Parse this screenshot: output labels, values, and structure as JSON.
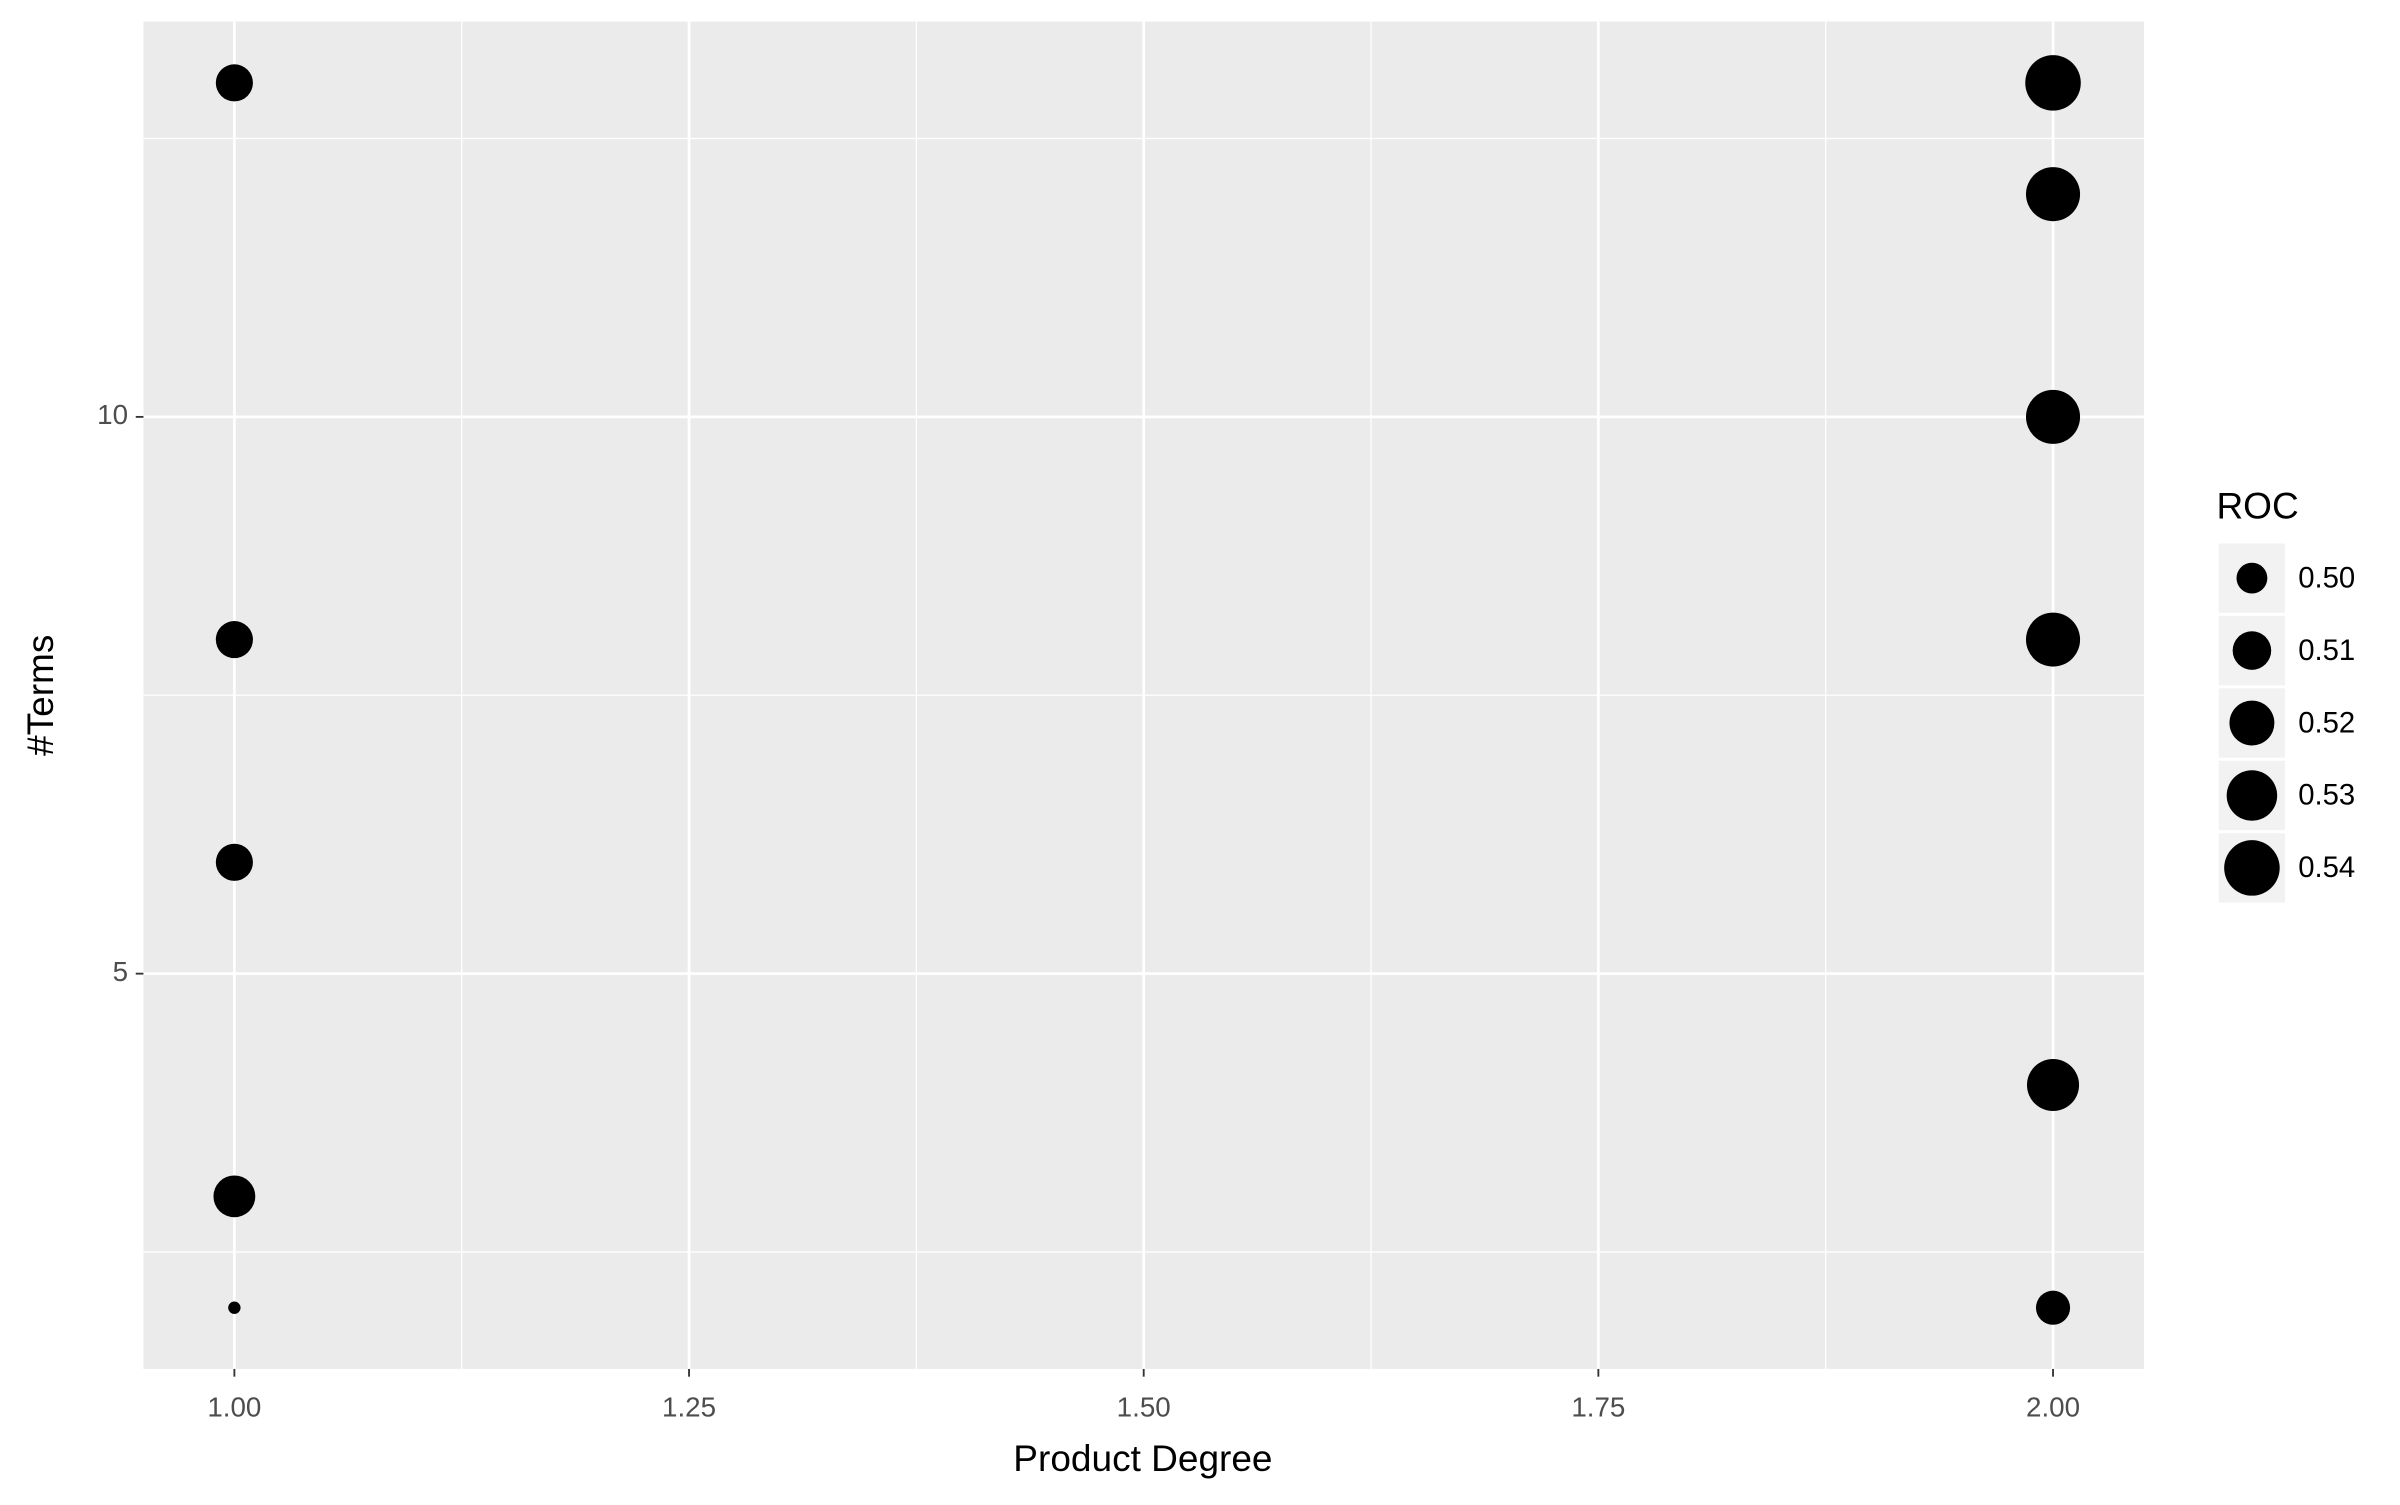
{
  "chart_data": {
    "type": "scatter",
    "x_label": "Product Degree",
    "y_label": "#Terms",
    "x": [
      1,
      1,
      1,
      1,
      1,
      2,
      2,
      2,
      2,
      2,
      2
    ],
    "y": [
      13,
      8,
      6,
      3,
      2,
      13,
      12,
      10,
      8,
      4,
      2
    ],
    "size": [
      0.508,
      0.508,
      0.508,
      0.515,
      0.485,
      0.54,
      0.537,
      0.537,
      0.537,
      0.533,
      0.504
    ],
    "color": "#000000",
    "xlim": [
      0.95,
      2.05
    ],
    "ylim": [
      1.45,
      13.55
    ],
    "xticks": [
      {
        "value": 1,
        "label": "1.00"
      },
      {
        "value": 1.25,
        "label": "1.25"
      },
      {
        "value": 1.5,
        "label": "1.50"
      },
      {
        "value": 1.75,
        "label": "1.75"
      },
      {
        "value": 2,
        "label": "2.00"
      }
    ],
    "yticks": [
      5,
      10
    ],
    "xminor": [
      1.125,
      1.375,
      1.625,
      1.875
    ],
    "yminor": [
      2.5,
      7.5,
      12.5
    ],
    "grid": true,
    "legend": {
      "title": "ROC",
      "position": "right",
      "breaks": [
        {
          "value": 0.5,
          "label": "0.50"
        },
        {
          "value": 0.51,
          "label": "0.51"
        },
        {
          "value": 0.52,
          "label": "0.52"
        },
        {
          "value": 0.53,
          "label": "0.53"
        },
        {
          "value": 0.54,
          "label": "0.54"
        }
      ]
    }
  }
}
